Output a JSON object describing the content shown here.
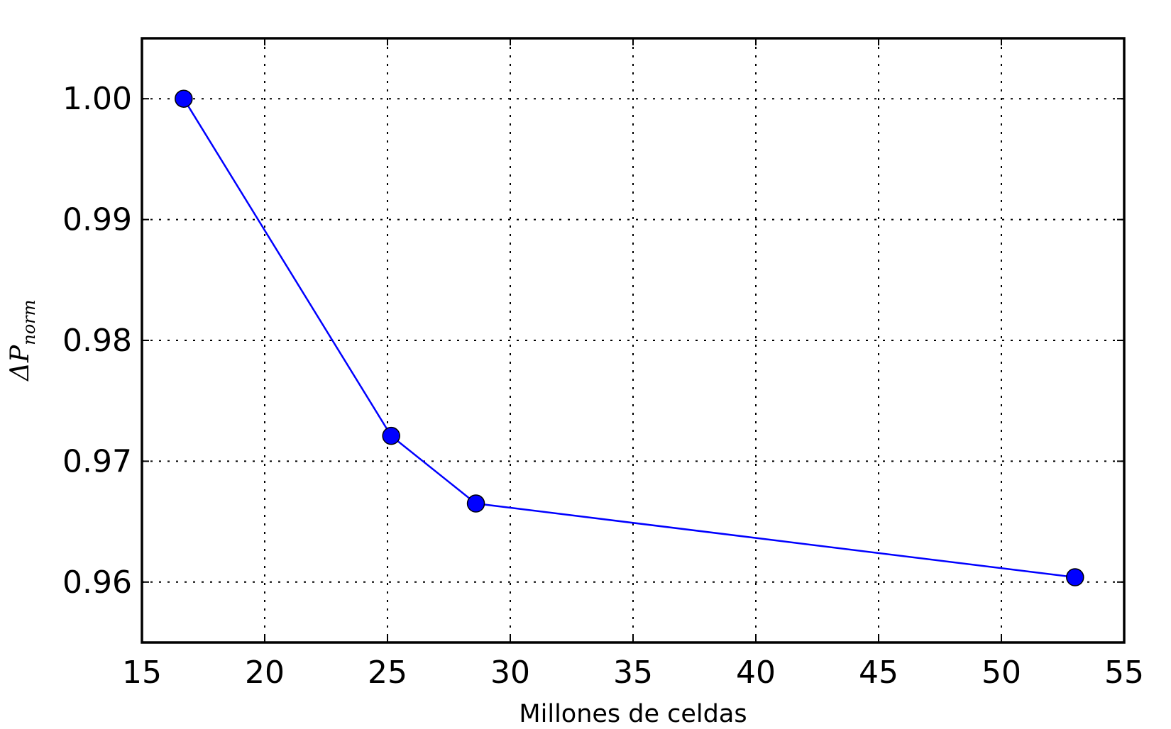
{
  "chart_data": {
    "type": "line",
    "title": "",
    "xlabel": "Millones de celdas",
    "ylabel": "ΔP_norm",
    "ylabel_main": "ΔP",
    "ylabel_sub": "norm",
    "xlim": [
      15,
      55
    ],
    "ylim": [
      0.955,
      1.005
    ],
    "xticks": [
      15,
      20,
      25,
      30,
      35,
      40,
      45,
      50,
      55
    ],
    "xtick_labels": [
      "15",
      "20",
      "25",
      "30",
      "35",
      "40",
      "45",
      "50",
      "55"
    ],
    "yticks": [
      0.96,
      0.97,
      0.98,
      0.99,
      1.0
    ],
    "ytick_labels": [
      "0.96",
      "0.97",
      "0.98",
      "0.99",
      "1.00"
    ],
    "grid": true,
    "series": [
      {
        "color": "#0000ff",
        "marker": "circle",
        "x": [
          16.7,
          25.15,
          28.6,
          53.0
        ],
        "y": [
          1.0,
          0.9721,
          0.9665,
          0.9604
        ]
      }
    ]
  }
}
